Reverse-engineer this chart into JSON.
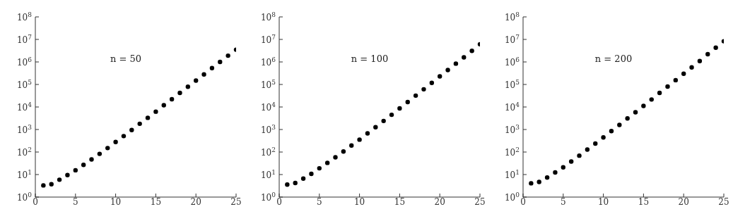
{
  "chart_data": [
    {
      "type": "scatter",
      "annotations": [
        "n = 50"
      ],
      "x": [
        1,
        2,
        3,
        4,
        5,
        6,
        7,
        8,
        9,
        10,
        11,
        12,
        13,
        14,
        15,
        16,
        17,
        18,
        19,
        20,
        21,
        22,
        23,
        24,
        25
      ],
      "series": [
        {
          "color": "#000000",
          "values": [
            3.3,
            3.7,
            5.9,
            9.5,
            15.5,
            27,
            47,
            83,
            150,
            280,
            510,
            950,
            1800,
            3300,
            6200,
            12000,
            22000,
            42000,
            79000,
            148000,
            280000,
            530000,
            1000000,
            1900000,
            3500000
          ]
        }
      ],
      "xlim": [
        0,
        25
      ],
      "xticks": [
        0,
        5,
        10,
        15,
        20,
        25
      ],
      "ylim": [
        1,
        100000000
      ],
      "log": "y",
      "marker": "circle",
      "grid": false,
      "yticks": [
        {
          "value": 1,
          "label": "10$^{0}$"
        },
        {
          "value": 10,
          "label": "10$^{1}$"
        },
        {
          "value": 100,
          "label": "10$^{2}$"
        },
        {
          "value": 1000,
          "label": "10$^{3}$"
        },
        {
          "value": 10000,
          "label": "10$^{4}$"
        },
        {
          "value": 100000,
          "label": "10$^{5}$"
        },
        {
          "value": 1000000,
          "label": "10$^{6}$"
        },
        {
          "value": 10000000,
          "label": "10$^{7}$"
        },
        {
          "value": 100000000,
          "label": "10$^{8}$"
        }
      ]
    },
    {
      "type": "scatter",
      "annotations": [
        "n = 100"
      ],
      "x": [
        1,
        2,
        3,
        4,
        5,
        6,
        7,
        8,
        9,
        10,
        11,
        12,
        13,
        14,
        15,
        16,
        17,
        18,
        19,
        20,
        21,
        22,
        23,
        24,
        25
      ],
      "series": [
        {
          "color": "#000000",
          "values": [
            3.6,
            4.2,
            6.6,
            10.8,
            19,
            33,
            58,
            105,
            195,
            355,
            670,
            1260,
            2400,
            4500,
            8700,
            16500,
            32000,
            61000,
            118000,
            228000,
            435000,
            840000,
            1600000,
            3100000,
            6100000
          ]
        }
      ],
      "xlim": [
        0,
        25
      ],
      "xticks": [
        0,
        5,
        10,
        15,
        20,
        25
      ],
      "ylim": [
        1,
        100000000
      ],
      "log": "y",
      "marker": "circle",
      "grid": false,
      "yticks": [
        {
          "value": 1,
          "label": "10$^{0}$"
        },
        {
          "value": 10,
          "label": "10$^{1}$"
        },
        {
          "value": 100,
          "label": "10$^{2}$"
        },
        {
          "value": 1000,
          "label": "10$^{3}$"
        },
        {
          "value": 10000,
          "label": "10$^{4}$"
        },
        {
          "value": 100000,
          "label": "10$^{5}$"
        },
        {
          "value": 1000000,
          "label": "10$^{6}$"
        },
        {
          "value": 10000000,
          "label": "10$^{7}$"
        },
        {
          "value": 100000000,
          "label": "10$^{8}$"
        }
      ]
    },
    {
      "type": "scatter",
      "annotations": [
        "n = 200"
      ],
      "x": [
        1,
        2,
        3,
        4,
        5,
        6,
        7,
        8,
        9,
        10,
        11,
        12,
        13,
        14,
        15,
        16,
        17,
        18,
        19,
        20,
        21,
        22,
        23,
        24,
        25
      ],
      "series": [
        {
          "color": "#000000",
          "values": [
            4.1,
            4.7,
            7.4,
            12.4,
            21,
            38,
            69,
            128,
            236,
            447,
            850,
            1600,
            3100,
            5800,
            11200,
            21500,
            42000,
            81000,
            155000,
            300000,
            575000,
            1100000,
            2200000,
            4300000,
            8300000
          ]
        }
      ],
      "xlim": [
        0,
        25
      ],
      "xticks": [
        0,
        5,
        10,
        15,
        20,
        25
      ],
      "ylim": [
        1,
        100000000
      ],
      "log": "y",
      "marker": "circle",
      "grid": false,
      "yticks": [
        {
          "value": 1,
          "label": "10$^{0}$"
        },
        {
          "value": 10,
          "label": "10$^{1}$"
        },
        {
          "value": 100,
          "label": "10$^{2}$"
        },
        {
          "value": 1000,
          "label": "10$^{3}$"
        },
        {
          "value": 10000,
          "label": "10$^{4}$"
        },
        {
          "value": 100000,
          "label": "10$^{5}$"
        },
        {
          "value": 1000000,
          "label": "10$^{6}$"
        },
        {
          "value": 10000000,
          "label": "10$^{7}$"
        },
        {
          "value": 100000000,
          "label": "10$^{8}$"
        }
      ]
    }
  ]
}
